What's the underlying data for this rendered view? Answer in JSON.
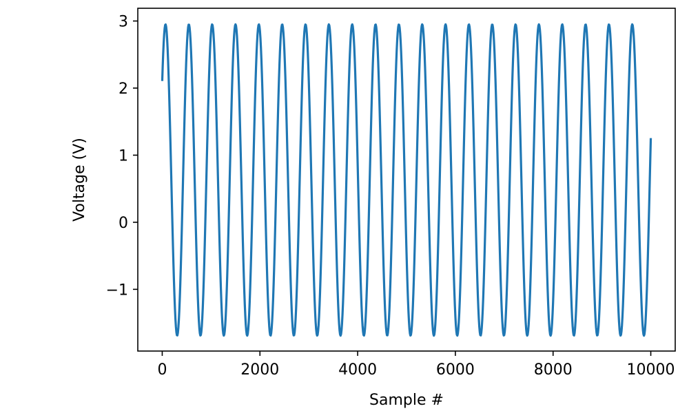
{
  "chart_data": {
    "type": "line",
    "title": "",
    "xlabel": "Sample #",
    "ylabel": "Voltage (V)",
    "xlim": [
      -500,
      10500
    ],
    "ylim": [
      -1.92,
      3.19
    ],
    "xticks": [
      0,
      2000,
      4000,
      6000,
      8000,
      10000
    ],
    "xtick_labels": [
      "0",
      "2000",
      "4000",
      "6000",
      "8000",
      "10000"
    ],
    "yticks": [
      -1,
      0,
      1,
      2,
      3
    ],
    "ytick_labels": [
      "−1",
      "0",
      "1",
      "2",
      "3"
    ],
    "grid": false,
    "legend": "none",
    "series": [
      {
        "color": "#1f77b4",
        "function": "sinusoid",
        "offset": 0.63,
        "amplitude": 2.32,
        "period": 477.7,
        "x_of_first_peak": 67,
        "x_start": 0,
        "x_end": 10000,
        "sample_step": 10
      }
    ]
  }
}
